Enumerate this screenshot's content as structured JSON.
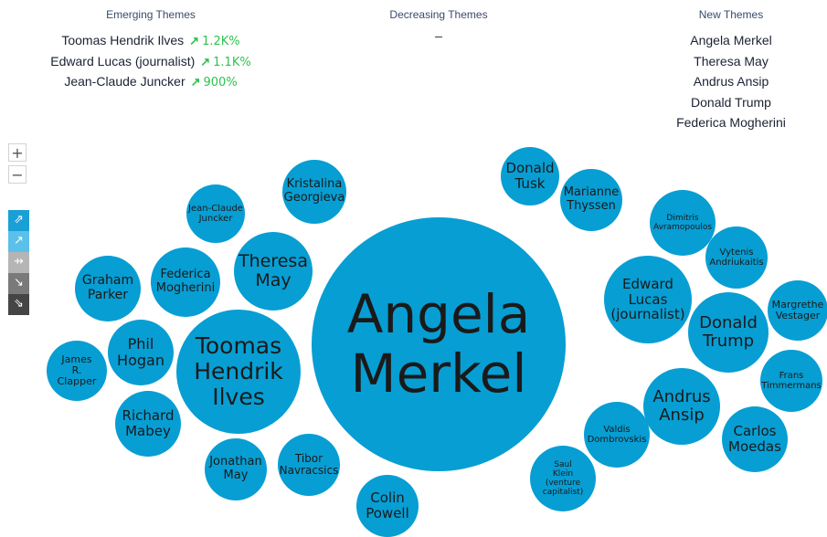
{
  "emerging": {
    "title": "Emerging Themes",
    "items": [
      {
        "name": "Toomas Hendrik Ilves",
        "trend_icon": "arrow-up-right",
        "change": "1.2K%"
      },
      {
        "name": "Edward Lucas (journalist)",
        "trend_icon": "arrow-up-right",
        "change": "1.1K%"
      },
      {
        "name": "Jean-Claude Juncker",
        "trend_icon": "arrow-up-right",
        "change": "900%"
      }
    ]
  },
  "decreasing": {
    "title": "Decreasing Themes",
    "empty": "–"
  },
  "new_themes": {
    "title": "New Themes",
    "items": [
      "Angela Merkel",
      "Theresa May",
      "Andrus Ansip",
      "Donald Trump",
      "Federica Mogherini"
    ]
  },
  "controls": {
    "zoom_in": "+",
    "zoom_out": "−",
    "legend": [
      {
        "icon": "strong-rise-icon",
        "glyph": "⇗",
        "color": "#1a9fd6"
      },
      {
        "icon": "rise-icon",
        "glyph": "↗",
        "color": "#5bc0ea"
      },
      {
        "icon": "stable-icon",
        "glyph": "⇸",
        "color": "#b5b5b5"
      },
      {
        "icon": "fall-icon",
        "glyph": "↘",
        "color": "#7a7a7a"
      },
      {
        "icon": "strong-fall-icon",
        "glyph": "⇘",
        "color": "#454545"
      }
    ]
  },
  "bubble_color": "#079ed3",
  "bubbles": [
    {
      "id": "angela-merkel",
      "lines": [
        "Angela",
        "Merkel"
      ]
    },
    {
      "id": "toomas-hendrik-ilves",
      "lines": [
        "Toomas",
        "Hendrik",
        "Ilves"
      ]
    },
    {
      "id": "theresa-may",
      "lines": [
        "Theresa",
        "May"
      ]
    },
    {
      "id": "kristalina-georgieva",
      "lines": [
        "Kristalina",
        "Georgieva"
      ]
    },
    {
      "id": "jean-claude-juncker",
      "lines": [
        "Jean-Claude",
        "Juncker"
      ]
    },
    {
      "id": "federica-mogherini",
      "lines": [
        "Federica",
        "Mogherini"
      ]
    },
    {
      "id": "graham-parker",
      "lines": [
        "Graham",
        "Parker"
      ]
    },
    {
      "id": "phil-hogan",
      "lines": [
        "Phil",
        "Hogan"
      ]
    },
    {
      "id": "james-r-clapper",
      "lines": [
        "James",
        "R.",
        "Clapper"
      ]
    },
    {
      "id": "richard-mabey",
      "lines": [
        "Richard",
        "Mabey"
      ]
    },
    {
      "id": "jonathan-may",
      "lines": [
        "Jonathan",
        "May"
      ]
    },
    {
      "id": "tibor-navracsics",
      "lines": [
        "Tibor",
        "Navracsics"
      ]
    },
    {
      "id": "colin-powell",
      "lines": [
        "Colin",
        "Powell"
      ]
    },
    {
      "id": "donald-tusk",
      "lines": [
        "Donald",
        "Tusk"
      ]
    },
    {
      "id": "marianne-thyssen",
      "lines": [
        "Marianne",
        "Thyssen"
      ]
    },
    {
      "id": "dimitris-avramopoulos",
      "lines": [
        "Dimitris",
        "Avramopoulos"
      ]
    },
    {
      "id": "vytenis-andriukaitis",
      "lines": [
        "Vytenis",
        "Andriukaitis"
      ]
    },
    {
      "id": "edward-lucas",
      "lines": [
        "Edward",
        "Lucas",
        "(journalist)"
      ]
    },
    {
      "id": "donald-trump",
      "lines": [
        "Donald",
        "Trump"
      ]
    },
    {
      "id": "margrethe-vestager",
      "lines": [
        "Margrethe",
        "Vestager"
      ]
    },
    {
      "id": "frans-timmermans",
      "lines": [
        "Frans",
        "Timmermans"
      ]
    },
    {
      "id": "andrus-ansip",
      "lines": [
        "Andrus",
        "Ansip"
      ]
    },
    {
      "id": "carlos-moedas",
      "lines": [
        "Carlos",
        "Moedas"
      ]
    },
    {
      "id": "valdis-dombrovskis",
      "lines": [
        "Valdis",
        "Dombrovskis"
      ]
    },
    {
      "id": "saul-klein",
      "lines": [
        "Saul",
        "Klein",
        "(venture",
        "capitalist)"
      ]
    }
  ]
}
